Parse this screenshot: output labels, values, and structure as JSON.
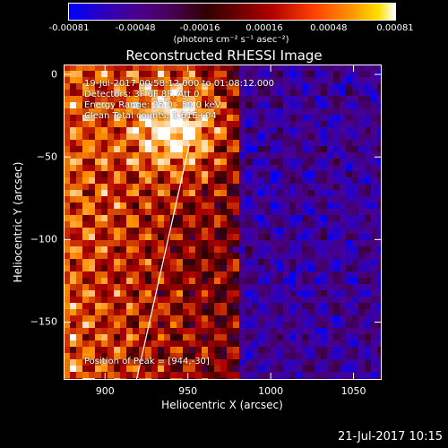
{
  "colorbar": {
    "ticks": [
      "-0.00081",
      "-0.00048",
      "-0.00016",
      "0.00016",
      "0.00048",
      "0.00081"
    ],
    "units": "(photons cm⁻² s⁻¹ asec⁻²)"
  },
  "chart_data": {
    "type": "heatmap",
    "title": "Reconstructed RHESSI Image",
    "xlabel": "Heliocentric X (arcsec)",
    "ylabel": "Heliocentric Y (arcsec)",
    "xlim": [
      875,
      1067
    ],
    "ylim": [
      -185,
      6
    ],
    "xticks": [
      "900",
      "950",
      "1000",
      "1050"
    ],
    "yticks": [
      "0",
      "−50",
      "−100",
      "−150"
    ],
    "colorbar_range": [
      -0.00081,
      0.00081
    ],
    "colormap": [
      "#0000ff",
      "#4a0090",
      "#300000",
      "#b00000",
      "#ff9000",
      "#ffffff"
    ],
    "peak": {
      "x": 944,
      "y": -30
    },
    "limb_line": [
      [
        919,
        -185
      ],
      [
        951,
        -42
      ]
    ],
    "info_lines": [
      "19-Jul-2017 00:58:12.000 to 01:08:12.000",
      "Detectors: 3F 6F 8F, Att 0",
      "Energy Range: 25.0 - 50.0 keV",
      "Clean    Total counts: 1.61E+04"
    ],
    "peak_label": "Position of Peak = [944,-30]"
  },
  "timestamp": "21-Jul-2017 10:15"
}
